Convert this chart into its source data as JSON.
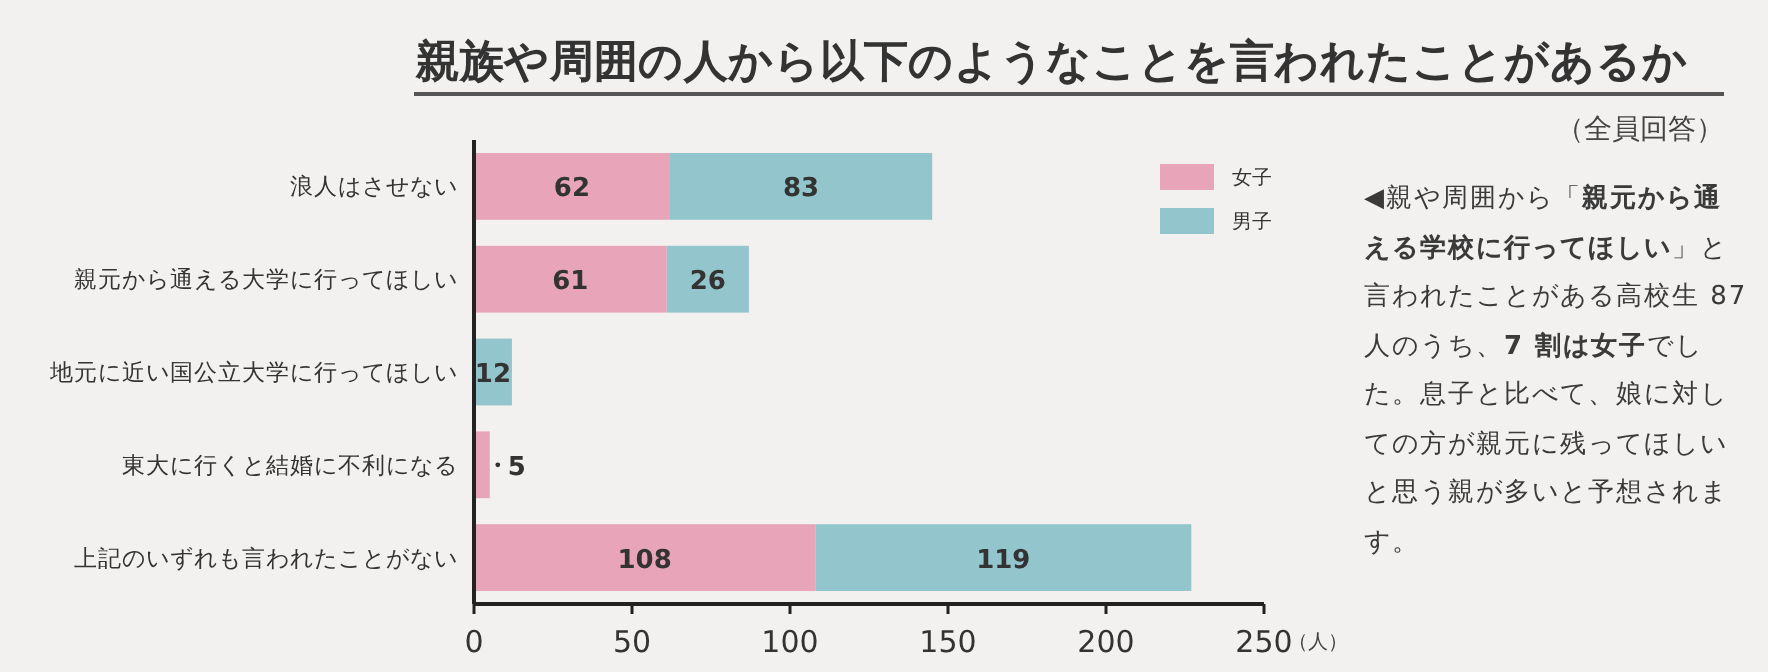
{
  "chart_data": {
    "type": "bar",
    "orientation": "horizontal",
    "stacked": true,
    "title": "親族や周囲の人から以下のようなことを言われたことがあるか",
    "subtitle": "（全員回答）",
    "xlabel": "（人）",
    "categories": [
      "浪人はさせない",
      "親元から通える大学に行ってほしい",
      "地元に近い国公立大学に行ってほしい",
      "東大に行くと結婚に不利になる",
      "上記のいずれも言われたことがない"
    ],
    "series": [
      {
        "name": "女子",
        "color": "#e8a5b9",
        "values": [
          62,
          61,
          null,
          5,
          108
        ]
      },
      {
        "name": "男子",
        "color": "#93c5cc",
        "values": [
          83,
          26,
          12,
          null,
          119
        ]
      }
    ],
    "xlim": [
      0,
      250
    ],
    "xticks": [
      0,
      50,
      100,
      150,
      200,
      250
    ],
    "data_labels": true,
    "legend": "top right",
    "annotations": [
      "◀親や周囲から「**親元から通える学校に行ってほしい**」と言われたことがある高校生 87 人のうち、**7 割は女子**でした。息子と比べて、娘に対しての方が親元に残ってほしいと思う親が多いと予想されます。"
    ]
  }
}
